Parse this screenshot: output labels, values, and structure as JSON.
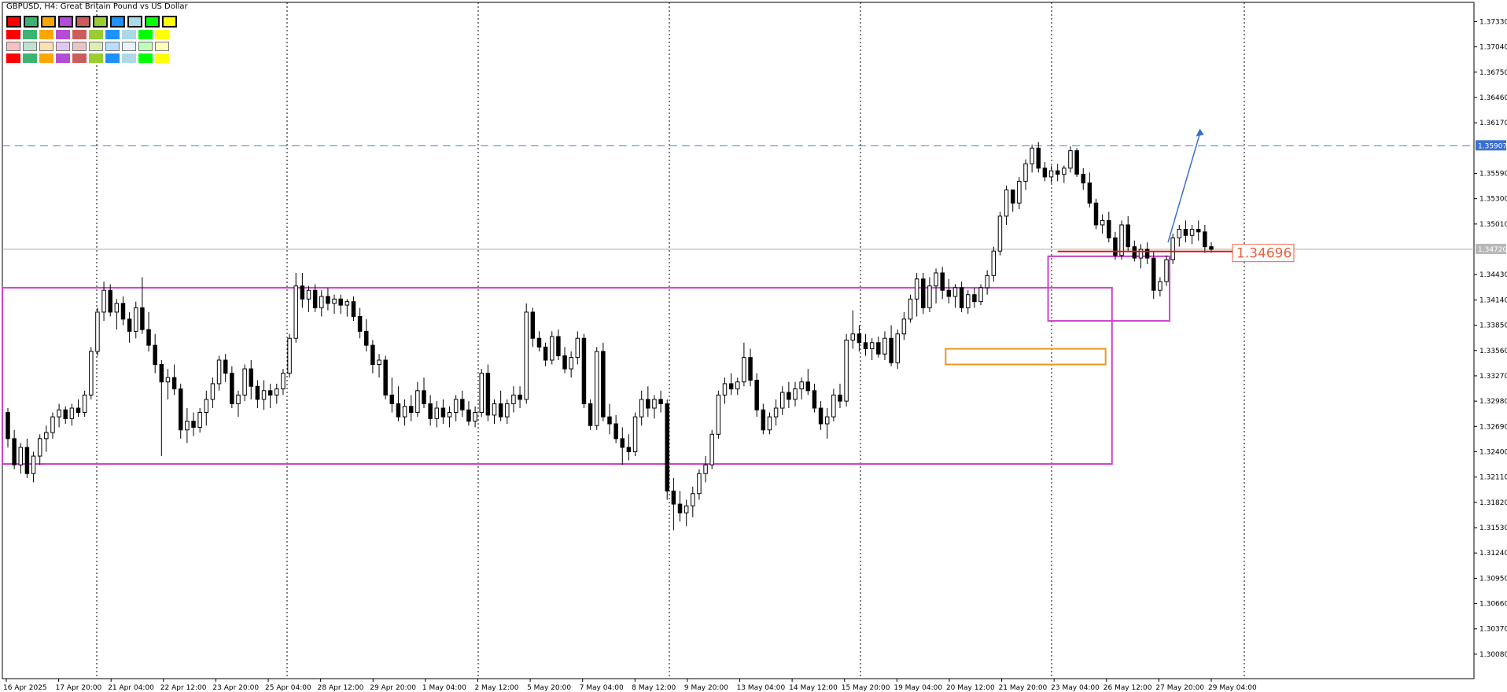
{
  "window": {
    "title": "GBPUSD, H4:  Great Britain Pound vs US Dollar"
  },
  "palette": {
    "rows": [
      [
        "#ff0000",
        "#3cb371",
        "#ffa500",
        "#b44cd6",
        "#cd5c5c",
        "#9acd32",
        "#1e90ff",
        "#add8e6",
        "#00ff00",
        "#ffff00"
      ],
      [
        "#ff0000",
        "#3cb371",
        "#ffa500",
        "#b44cd6",
        "#cd5c5c",
        "#9acd32",
        "#1e90ff",
        "#add8e6",
        "#00ff00",
        "#ffff00"
      ],
      [
        "#f8c0c0",
        "#bfe3cf",
        "#ffe0b0",
        "#e4c7f0",
        "#eac4c4",
        "#dcedb5",
        "#bbdcff",
        "#e6f3f8",
        "#bbffbb",
        "#ffffbb"
      ],
      [
        "#ff0000",
        "#3cb371",
        "#ffa500",
        "#b44cd6",
        "#cd5c5c",
        "#9acd32",
        "#1e90ff",
        "#add8e6",
        "#00ff00",
        "#ffff00"
      ]
    ]
  },
  "chart_data": {
    "type": "candlestick",
    "symbol": "GBPUSD",
    "timeframe": "H4",
    "description": "Great Britain Pound vs US Dollar",
    "ylim": [
      1.298,
      1.3755
    ],
    "y_ticks": [
      "1.37330",
      "1.37040",
      "1.36750",
      "1.36460",
      "1.36170",
      "1.35590",
      "1.35300",
      "1.35010",
      "1.34430",
      "1.34140",
      "1.33850",
      "1.33560",
      "1.33270",
      "1.32980",
      "1.32690",
      "1.32400",
      "1.32110",
      "1.31820",
      "1.31530",
      "1.31240",
      "1.30950",
      "1.30660",
      "1.30370",
      "1.30080"
    ],
    "x_ticks": [
      "16 Apr 2025",
      "17 Apr 20:00",
      "21 Apr 04:00",
      "22 Apr 12:00",
      "23 Apr 20:00",
      "25 Apr 04:00",
      "28 Apr 12:00",
      "29 Apr 20:00",
      "1 May 04:00",
      "2 May 12:00",
      "5 May 20:00",
      "7 May 04:00",
      "8 May 12:00",
      "9 May 20:00",
      "13 May 04:00",
      "14 May 12:00",
      "15 May 20:00",
      "19 May 04:00",
      "20 May 12:00",
      "21 May 20:00",
      "23 May 04:00",
      "26 May 12:00",
      "27 May 20:00",
      "29 May 04:00"
    ],
    "ohlc": [
      [
        1.3285,
        1.329,
        1.3245,
        1.3255
      ],
      [
        1.3255,
        1.3265,
        1.322,
        1.3225
      ],
      [
        1.3225,
        1.325,
        1.3215,
        1.3245
      ],
      [
        1.3245,
        1.3255,
        1.321,
        1.3215
      ],
      [
        1.3215,
        1.324,
        1.3205,
        1.3235
      ],
      [
        1.3235,
        1.326,
        1.3225,
        1.3255
      ],
      [
        1.3255,
        1.327,
        1.324,
        1.3262
      ],
      [
        1.3262,
        1.3285,
        1.3255,
        1.328
      ],
      [
        1.328,
        1.3295,
        1.3268,
        1.3288
      ],
      [
        1.3288,
        1.3292,
        1.3272,
        1.3278
      ],
      [
        1.3278,
        1.3295,
        1.327,
        1.329
      ],
      [
        1.329,
        1.33,
        1.328,
        1.3285
      ],
      [
        1.3285,
        1.331,
        1.328,
        1.3305
      ],
      [
        1.3305,
        1.336,
        1.33,
        1.3355
      ],
      [
        1.3355,
        1.3405,
        1.335,
        1.34
      ],
      [
        1.34,
        1.3435,
        1.339,
        1.3425
      ],
      [
        1.3425,
        1.3432,
        1.3395,
        1.34
      ],
      [
        1.34,
        1.3415,
        1.338,
        1.341
      ],
      [
        1.341,
        1.3418,
        1.3385,
        1.3392
      ],
      [
        1.3392,
        1.34,
        1.3365,
        1.3378
      ],
      [
        1.3378,
        1.3412,
        1.337,
        1.3405
      ],
      [
        1.3405,
        1.344,
        1.3375,
        1.338
      ],
      [
        1.338,
        1.34,
        1.3355,
        1.3362
      ],
      [
        1.3362,
        1.3375,
        1.333,
        1.334
      ],
      [
        1.334,
        1.3345,
        1.3235,
        1.332
      ],
      [
        1.332,
        1.3335,
        1.33,
        1.3325
      ],
      [
        1.3325,
        1.334,
        1.3305,
        1.3312
      ],
      [
        1.3312,
        1.3318,
        1.3255,
        1.3265
      ],
      [
        1.3265,
        1.329,
        1.325,
        1.3275
      ],
      [
        1.3275,
        1.3285,
        1.3258,
        1.3268
      ],
      [
        1.3268,
        1.329,
        1.3262,
        1.3285
      ],
      [
        1.3285,
        1.331,
        1.327,
        1.33
      ],
      [
        1.33,
        1.3325,
        1.329,
        1.3318
      ],
      [
        1.3318,
        1.335,
        1.331,
        1.3345
      ],
      [
        1.3345,
        1.3352,
        1.332,
        1.333
      ],
      [
        1.333,
        1.3338,
        1.329,
        1.3295
      ],
      [
        1.3295,
        1.331,
        1.328,
        1.3305
      ],
      [
        1.3305,
        1.334,
        1.3298,
        1.3335
      ],
      [
        1.3335,
        1.3345,
        1.33,
        1.3315
      ],
      [
        1.3315,
        1.3322,
        1.329,
        1.33
      ],
      [
        1.33,
        1.3322,
        1.3288,
        1.331
      ],
      [
        1.331,
        1.3318,
        1.329,
        1.3305
      ],
      [
        1.3305,
        1.3318,
        1.3295,
        1.3312
      ],
      [
        1.3312,
        1.3335,
        1.3305,
        1.333
      ],
      [
        1.333,
        1.3375,
        1.3325,
        1.337
      ],
      [
        1.337,
        1.3445,
        1.3365,
        1.343
      ],
      [
        1.343,
        1.3445,
        1.3405,
        1.3415
      ],
      [
        1.3415,
        1.343,
        1.34,
        1.3425
      ],
      [
        1.3425,
        1.3432,
        1.34,
        1.3405
      ],
      [
        1.3405,
        1.3425,
        1.3395,
        1.3418
      ],
      [
        1.3418,
        1.3428,
        1.3402,
        1.341
      ],
      [
        1.341,
        1.342,
        1.3398,
        1.3415
      ],
      [
        1.3415,
        1.342,
        1.3398,
        1.3408
      ],
      [
        1.3408,
        1.3415,
        1.3395,
        1.3412
      ],
      [
        1.3412,
        1.3418,
        1.339,
        1.3395
      ],
      [
        1.3395,
        1.3405,
        1.337,
        1.3378
      ],
      [
        1.3378,
        1.3392,
        1.3355,
        1.3362
      ],
      [
        1.3362,
        1.3368,
        1.333,
        1.334
      ],
      [
        1.334,
        1.3352,
        1.3325,
        1.3345
      ],
      [
        1.3345,
        1.335,
        1.33,
        1.3305
      ],
      [
        1.3305,
        1.3325,
        1.3285,
        1.3295
      ],
      [
        1.3295,
        1.3315,
        1.3275,
        1.328
      ],
      [
        1.328,
        1.33,
        1.327,
        1.3292
      ],
      [
        1.3292,
        1.3305,
        1.3275,
        1.3285
      ],
      [
        1.3285,
        1.332,
        1.328,
        1.331
      ],
      [
        1.331,
        1.3325,
        1.329,
        1.3295
      ],
      [
        1.3295,
        1.3305,
        1.327,
        1.3278
      ],
      [
        1.3278,
        1.3298,
        1.3268,
        1.329
      ],
      [
        1.329,
        1.33,
        1.3272,
        1.328
      ],
      [
        1.328,
        1.3292,
        1.3268,
        1.3285
      ],
      [
        1.3285,
        1.3305,
        1.3275,
        1.33
      ],
      [
        1.33,
        1.331,
        1.328,
        1.3288
      ],
      [
        1.3288,
        1.3298,
        1.327,
        1.3275
      ],
      [
        1.3275,
        1.3292,
        1.3268,
        1.3285
      ],
      [
        1.3285,
        1.3335,
        1.328,
        1.333
      ],
      [
        1.333,
        1.334,
        1.3275,
        1.3282
      ],
      [
        1.3282,
        1.33,
        1.3272,
        1.3295
      ],
      [
        1.3295,
        1.331,
        1.3275,
        1.328
      ],
      [
        1.328,
        1.33,
        1.3272,
        1.3295
      ],
      [
        1.3295,
        1.3315,
        1.3285,
        1.3305
      ],
      [
        1.3305,
        1.3315,
        1.329,
        1.33
      ],
      [
        1.33,
        1.341,
        1.3295,
        1.34
      ],
      [
        1.34,
        1.3405,
        1.336,
        1.337
      ],
      [
        1.337,
        1.3378,
        1.3355,
        1.336
      ],
      [
        1.336,
        1.3365,
        1.3338,
        1.3345
      ],
      [
        1.3345,
        1.3378,
        1.334,
        1.3372
      ],
      [
        1.3372,
        1.338,
        1.3345,
        1.335
      ],
      [
        1.335,
        1.336,
        1.333,
        1.3335
      ],
      [
        1.3335,
        1.3355,
        1.3325,
        1.3348
      ],
      [
        1.3348,
        1.3378,
        1.334,
        1.337
      ],
      [
        1.337,
        1.3375,
        1.329,
        1.3295
      ],
      [
        1.3295,
        1.33,
        1.3265,
        1.327
      ],
      [
        1.327,
        1.336,
        1.3265,
        1.3355
      ],
      [
        1.3355,
        1.3365,
        1.3275,
        1.328
      ],
      [
        1.328,
        1.3295,
        1.326,
        1.3272
      ],
      [
        1.3272,
        1.3282,
        1.325,
        1.3255
      ],
      [
        1.3255,
        1.3268,
        1.3225,
        1.3245
      ],
      [
        1.3245,
        1.326,
        1.323,
        1.324
      ],
      [
        1.324,
        1.3285,
        1.3235,
        1.328
      ],
      [
        1.328,
        1.331,
        1.327,
        1.33
      ],
      [
        1.33,
        1.3315,
        1.328,
        1.329
      ],
      [
        1.329,
        1.3305,
        1.3278,
        1.33
      ],
      [
        1.33,
        1.331,
        1.3285,
        1.3295
      ],
      [
        1.3295,
        1.33,
        1.3185,
        1.3195
      ],
      [
        1.3195,
        1.321,
        1.315,
        1.318
      ],
      [
        1.318,
        1.3195,
        1.316,
        1.317
      ],
      [
        1.317,
        1.3185,
        1.3155,
        1.3178
      ],
      [
        1.3178,
        1.32,
        1.3165,
        1.3192
      ],
      [
        1.3192,
        1.322,
        1.3185,
        1.3215
      ],
      [
        1.3215,
        1.3235,
        1.3205,
        1.3225
      ],
      [
        1.3225,
        1.3265,
        1.322,
        1.326
      ],
      [
        1.326,
        1.331,
        1.3255,
        1.3305
      ],
      [
        1.3305,
        1.3325,
        1.3295,
        1.3318
      ],
      [
        1.3318,
        1.333,
        1.3305,
        1.3312
      ],
      [
        1.3312,
        1.3325,
        1.3305,
        1.332
      ],
      [
        1.332,
        1.3365,
        1.3315,
        1.3348
      ],
      [
        1.3348,
        1.3358,
        1.3315,
        1.3322
      ],
      [
        1.3322,
        1.333,
        1.328,
        1.3288
      ],
      [
        1.3288,
        1.3295,
        1.326,
        1.3265
      ],
      [
        1.3265,
        1.3285,
        1.326,
        1.328
      ],
      [
        1.328,
        1.33,
        1.327,
        1.329
      ],
      [
        1.329,
        1.3315,
        1.3282,
        1.3308
      ],
      [
        1.3308,
        1.332,
        1.329,
        1.33
      ],
      [
        1.33,
        1.332,
        1.3292,
        1.3312
      ],
      [
        1.3312,
        1.3325,
        1.33,
        1.332
      ],
      [
        1.332,
        1.3335,
        1.3305,
        1.331
      ],
      [
        1.331,
        1.3318,
        1.3285,
        1.329
      ],
      [
        1.329,
        1.3298,
        1.3265,
        1.3272
      ],
      [
        1.3272,
        1.329,
        1.3255,
        1.328
      ],
      [
        1.328,
        1.3312,
        1.3275,
        1.3305
      ],
      [
        1.3305,
        1.3318,
        1.329,
        1.3298
      ],
      [
        1.3298,
        1.3375,
        1.3292,
        1.3368
      ],
      [
        1.3368,
        1.3402,
        1.3358,
        1.3375
      ],
      [
        1.3375,
        1.3385,
        1.3355,
        1.3365
      ],
      [
        1.3365,
        1.3375,
        1.335,
        1.3358
      ],
      [
        1.3358,
        1.337,
        1.3345,
        1.3365
      ],
      [
        1.3365,
        1.3372,
        1.3348,
        1.3352
      ],
      [
        1.3352,
        1.3378,
        1.3345,
        1.337
      ],
      [
        1.337,
        1.3385,
        1.3338,
        1.3342
      ],
      [
        1.3342,
        1.338,
        1.3335,
        1.3375
      ],
      [
        1.3375,
        1.34,
        1.3368,
        1.3392
      ],
      [
        1.3392,
        1.342,
        1.3388,
        1.3415
      ],
      [
        1.3415,
        1.3445,
        1.3395,
        1.3438
      ],
      [
        1.3438,
        1.3445,
        1.3398,
        1.3405
      ],
      [
        1.3405,
        1.344,
        1.34,
        1.343
      ],
      [
        1.343,
        1.345,
        1.341,
        1.3445
      ],
      [
        1.3445,
        1.3452,
        1.3415,
        1.3425
      ],
      [
        1.3425,
        1.3438,
        1.341,
        1.3418
      ],
      [
        1.3418,
        1.3432,
        1.3405,
        1.3428
      ],
      [
        1.3428,
        1.3435,
        1.34,
        1.3405
      ],
      [
        1.3405,
        1.3425,
        1.3398,
        1.342
      ],
      [
        1.342,
        1.3428,
        1.3405,
        1.3412
      ],
      [
        1.3412,
        1.3432,
        1.3408,
        1.3428
      ],
      [
        1.3428,
        1.3448,
        1.342,
        1.3442
      ],
      [
        1.3442,
        1.3475,
        1.3435,
        1.347
      ],
      [
        1.347,
        1.3515,
        1.3465,
        1.351
      ],
      [
        1.351,
        1.3545,
        1.35,
        1.354
      ],
      [
        1.354,
        1.3535,
        1.3515,
        1.3525
      ],
      [
        1.3525,
        1.3555,
        1.3518,
        1.355
      ],
      [
        1.355,
        1.3575,
        1.354,
        1.357
      ],
      [
        1.357,
        1.3592,
        1.356,
        1.3588
      ],
      [
        1.3588,
        1.3595,
        1.356,
        1.3565
      ],
      [
        1.3565,
        1.3572,
        1.355,
        1.3555
      ],
      [
        1.3555,
        1.3568,
        1.3548,
        1.3562
      ],
      [
        1.3562,
        1.357,
        1.355,
        1.3558
      ],
      [
        1.3558,
        1.3568,
        1.3548,
        1.3565
      ],
      [
        1.3565,
        1.359,
        1.356,
        1.3585
      ],
      [
        1.3585,
        1.3588,
        1.3555,
        1.3558
      ],
      [
        1.3558,
        1.3565,
        1.354,
        1.3548
      ],
      [
        1.3548,
        1.356,
        1.352,
        1.3525
      ],
      [
        1.3525,
        1.353,
        1.3495,
        1.35
      ],
      [
        1.35,
        1.3512,
        1.349,
        1.3505
      ],
      [
        1.3505,
        1.3515,
        1.348,
        1.3485
      ],
      [
        1.3485,
        1.3492,
        1.346,
        1.3465
      ],
      [
        1.3465,
        1.3505,
        1.346,
        1.35
      ],
      [
        1.35,
        1.351,
        1.347,
        1.3475
      ],
      [
        1.3475,
        1.3482,
        1.3458,
        1.3462
      ],
      [
        1.3462,
        1.3478,
        1.345,
        1.3472
      ],
      [
        1.3472,
        1.348,
        1.3455,
        1.3462
      ],
      [
        1.3462,
        1.347,
        1.3415,
        1.3425
      ],
      [
        1.3425,
        1.344,
        1.3418,
        1.3435
      ],
      [
        1.3435,
        1.3465,
        1.343,
        1.346
      ],
      [
        1.346,
        1.349,
        1.3455,
        1.3485
      ],
      [
        1.3485,
        1.35,
        1.3475,
        1.3495
      ],
      [
        1.3495,
        1.3505,
        1.348,
        1.3488
      ],
      [
        1.3488,
        1.35,
        1.3478,
        1.3495
      ],
      [
        1.3495,
        1.3505,
        1.3482,
        1.3492
      ],
      [
        1.3492,
        1.35,
        1.3468,
        1.3475
      ],
      [
        1.3475,
        1.348,
        1.3468,
        1.3472
      ]
    ],
    "current_price": "1.34720",
    "levels": [
      {
        "price": "1.35907",
        "style": "dashed",
        "color": "#4a7fd4"
      },
      {
        "price": "1.34720",
        "style": "solid",
        "color": "#b0b0b0"
      }
    ],
    "annotations": {
      "label_price": "1.34696",
      "zones": [
        {
          "color": "#cc44cc",
          "from_bar": 0,
          "to_bar": 172,
          "top": 1.3428,
          "bottom": 1.3226
        },
        {
          "color": "#e8961e",
          "from_bar": 147,
          "to_bar": 171,
          "top": 1.3358,
          "bottom": 1.334
        },
        {
          "color": "#cc44cc",
          "from_bar": 163,
          "to_bar": 181,
          "top": 1.3464,
          "bottom": 1.339
        }
      ]
    }
  }
}
